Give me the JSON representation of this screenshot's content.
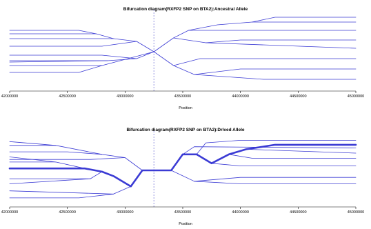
{
  "chart_data": [
    {
      "type": "line",
      "title": "Bifurcation diagram(RXFP2 SNP on BTA2):Ancestral Allele",
      "xlabel": "Position",
      "ylabel": "",
      "xlim": [
        42000000,
        45000000
      ],
      "ylim": [
        0,
        11
      ],
      "xticks": [
        42000000,
        42500000,
        43000000,
        43500000,
        44000000,
        44500000,
        45000000
      ],
      "core_position": 43250000,
      "series_color": "#3b3bd4",
      "segments": [
        {
          "points": [
            [
              43250000,
              5.5
            ],
            [
              43420000,
              3.5
            ],
            [
              43600000,
              2.2
            ],
            [
              44200000,
              1.5
            ],
            [
              45000000,
              1.5
            ]
          ],
          "weight": 1
        },
        {
          "points": [
            [
              43600000,
              2.2
            ],
            [
              44000000,
              3.0
            ],
            [
              45000000,
              3.0
            ]
          ],
          "weight": 1
        },
        {
          "points": [
            [
              43420000,
              3.5
            ],
            [
              43650000,
              4.5
            ],
            [
              45000000,
              4.5
            ]
          ],
          "weight": 1
        },
        {
          "points": [
            [
              43250000,
              5.5
            ],
            [
              43420000,
              7.5
            ],
            [
              43550000,
              8.6
            ],
            [
              45000000,
              8.6
            ]
          ],
          "weight": 1
        },
        {
          "points": [
            [
              43420000,
              7.5
            ],
            [
              43700000,
              6.8
            ],
            [
              44000000,
              7.2
            ],
            [
              45000000,
              7.2
            ]
          ],
          "weight": 1
        },
        {
          "points": [
            [
              43700000,
              6.8
            ],
            [
              45000000,
              6.0
            ]
          ],
          "weight": 1
        },
        {
          "points": [
            [
              43550000,
              8.6
            ],
            [
              43800000,
              9.4
            ],
            [
              44100000,
              9.8
            ],
            [
              45000000,
              9.8
            ]
          ],
          "weight": 1
        },
        {
          "points": [
            [
              44100000,
              9.8
            ],
            [
              44300000,
              10.5
            ],
            [
              45000000,
              10.5
            ]
          ],
          "weight": 1
        },
        {
          "points": [
            [
              43250000,
              5.5
            ],
            [
              43100000,
              7.0
            ],
            [
              42900000,
              7.4
            ],
            [
              42000000,
              7.4
            ]
          ],
          "weight": 1
        },
        {
          "points": [
            [
              42900000,
              7.4
            ],
            [
              42750000,
              8.1
            ],
            [
              42000000,
              8.1
            ]
          ],
          "weight": 1
        },
        {
          "points": [
            [
              42750000,
              8.1
            ],
            [
              42600000,
              8.6
            ],
            [
              42000000,
              8.6
            ]
          ],
          "weight": 1
        },
        {
          "points": [
            [
              43100000,
              7.0
            ],
            [
              42800000,
              6.3
            ],
            [
              42000000,
              6.3
            ]
          ],
          "weight": 1
        },
        {
          "points": [
            [
              43250000,
              5.5
            ],
            [
              43100000,
              4.5
            ],
            [
              42850000,
              4.2
            ],
            [
              42000000,
              4.2
            ]
          ],
          "weight": 1
        },
        {
          "points": [
            [
              42850000,
              4.2
            ],
            [
              42000000,
              4.0
            ]
          ],
          "weight": 1
        },
        {
          "points": [
            [
              43100000,
              4.5
            ],
            [
              42800000,
              5.0
            ],
            [
              42000000,
              5.0
            ]
          ],
          "weight": 1
        },
        {
          "points": [
            [
              42800000,
              3.5
            ],
            [
              42000000,
              3.5
            ]
          ],
          "weight": 1
        },
        {
          "points": [
            [
              42800000,
              3.5
            ],
            [
              42600000,
              2.5
            ],
            [
              42000000,
              2.5
            ]
          ],
          "weight": 1
        },
        {
          "points": [
            [
              42800000,
              3.5
            ],
            [
              43250000,
              5.5
            ]
          ],
          "weight": 1
        }
      ]
    },
    {
      "type": "line",
      "title": "Bifurcation diagram(RXFP2 SNP on BTA2):Drived Allele",
      "xlabel": "Position",
      "ylabel": "",
      "xlim": [
        42000000,
        45000000
      ],
      "ylim": [
        0,
        11
      ],
      "xticks": [
        42000000,
        42500000,
        43000000,
        43500000,
        44000000,
        44500000,
        45000000
      ],
      "core_position": 43250000,
      "series_color": "#3b3bd4",
      "segments": [
        {
          "points": [
            [
              43250000,
              5.5
            ],
            [
              43400000,
              5.5
            ],
            [
              43500000,
              8.0
            ],
            [
              43620000,
              8.0
            ],
            [
              43750000,
              6.6
            ],
            [
              43900000,
              8.0
            ],
            [
              44050000,
              8.8
            ],
            [
              44300000,
              9.5
            ],
            [
              45000000,
              9.5
            ]
          ],
          "weight": 3
        },
        {
          "points": [
            [
              43250000,
              5.5
            ],
            [
              43150000,
              5.5
            ],
            [
              43050000,
              3.0
            ],
            [
              42900000,
              4.6
            ],
            [
              42800000,
              5.3
            ],
            [
              42650000,
              5.8
            ],
            [
              42000000,
              5.8
            ]
          ],
          "weight": 3
        },
        {
          "points": [
            [
              43620000,
              8.0
            ],
            [
              43700000,
              9.8
            ],
            [
              44000000,
              10.2
            ],
            [
              45000000,
              10.2
            ]
          ],
          "weight": 1
        },
        {
          "points": [
            [
              43750000,
              6.6
            ],
            [
              44000000,
              6.2
            ],
            [
              45000000,
              6.2
            ]
          ],
          "weight": 1
        },
        {
          "points": [
            [
              43900000,
              8.0
            ],
            [
              44100000,
              7.4
            ],
            [
              45000000,
              7.4
            ]
          ],
          "weight": 1
        },
        {
          "points": [
            [
              43400000,
              5.5
            ],
            [
              43600000,
              3.8
            ],
            [
              44000000,
              3.4
            ],
            [
              45000000,
              3.4
            ]
          ],
          "weight": 1
        },
        {
          "points": [
            [
              43600000,
              3.8
            ],
            [
              44000000,
              4.4
            ],
            [
              45000000,
              4.4
            ]
          ],
          "weight": 1
        },
        {
          "points": [
            [
              43500000,
              8.0
            ],
            [
              43600000,
              9.2
            ],
            [
              45000000,
              9.0
            ]
          ],
          "weight": 1
        },
        {
          "points": [
            [
              44050000,
              8.8
            ],
            [
              45000000,
              8.2
            ]
          ],
          "weight": 1
        },
        {
          "points": [
            [
              43050000,
              3.0
            ],
            [
              42900000,
              1.8
            ],
            [
              42600000,
              1.2
            ],
            [
              42000000,
              1.2
            ]
          ],
          "weight": 1
        },
        {
          "points": [
            [
              42900000,
              1.8
            ],
            [
              42000000,
              2.3
            ]
          ],
          "weight": 1
        },
        {
          "points": [
            [
              42800000,
              5.3
            ],
            [
              42700000,
              4.2
            ],
            [
              42000000,
              4.2
            ]
          ],
          "weight": 1
        },
        {
          "points": [
            [
              42700000,
              4.2
            ],
            [
              42000000,
              3.4
            ]
          ],
          "weight": 1
        },
        {
          "points": [
            [
              43150000,
              5.5
            ],
            [
              43000000,
              7.5
            ],
            [
              42800000,
              8.0
            ],
            [
              42400000,
              9.4
            ],
            [
              42000000,
              9.4
            ]
          ],
          "weight": 1
        },
        {
          "points": [
            [
              42800000,
              8.0
            ],
            [
              42500000,
              8.4
            ],
            [
              42000000,
              8.4
            ]
          ],
          "weight": 1
        },
        {
          "points": [
            [
              42400000,
              9.4
            ],
            [
              42000000,
              10.0
            ]
          ],
          "weight": 1
        },
        {
          "points": [
            [
              42650000,
              5.8
            ],
            [
              42400000,
              6.8
            ],
            [
              42000000,
              6.8
            ]
          ],
          "weight": 1
        },
        {
          "points": [
            [
              42400000,
              6.8
            ],
            [
              42000000,
              7.6
            ]
          ],
          "weight": 1
        },
        {
          "points": [
            [
              43000000,
              7.5
            ],
            [
              42700000,
              7.2
            ],
            [
              42000000,
              7.2
            ]
          ],
          "weight": 1
        }
      ]
    }
  ]
}
